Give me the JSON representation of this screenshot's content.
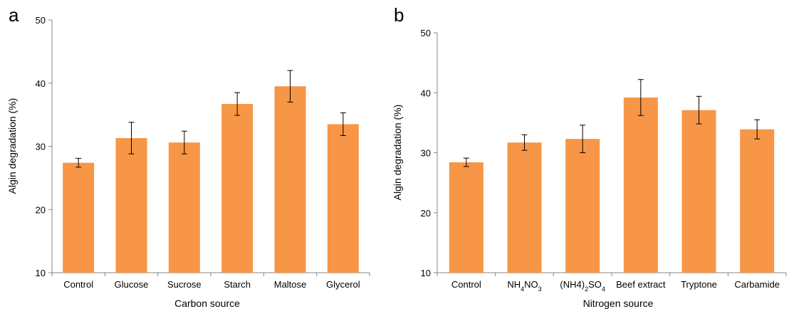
{
  "chart_data": [
    {
      "panel_label": "a",
      "type": "bar",
      "categories": [
        "Control",
        "Glucose",
        "Sucrose",
        "Starch",
        "Maltose",
        "Glycerol"
      ],
      "values": [
        27.4,
        31.3,
        30.6,
        36.7,
        39.5,
        33.5
      ],
      "errors": [
        0.7,
        2.5,
        1.8,
        1.8,
        2.5,
        1.8
      ],
      "xlabel": "Carbon source",
      "ylabel": "Algin degradation (%)",
      "ylim": [
        10,
        50
      ],
      "yticks": [
        "10",
        "20",
        "30",
        "40",
        "50"
      ],
      "bar_color": "#F79646",
      "grid": false
    },
    {
      "panel_label": "b",
      "type": "bar",
      "categories": [
        "Control",
        "NH4NO3",
        "(NH4)2SO4",
        "Beef extract",
        "Tryptone",
        "Carbamide"
      ],
      "category_labels": [
        [
          {
            "t": "Control",
            "s": ""
          }
        ],
        [
          {
            "t": "NH",
            "s": ""
          },
          {
            "t": "4",
            "s": "sub"
          },
          {
            "t": "NO",
            "s": ""
          },
          {
            "t": "3",
            "s": "sub"
          }
        ],
        [
          {
            "t": "(NH4)",
            "s": ""
          },
          {
            "t": "2",
            "s": "sub"
          },
          {
            "t": "SO",
            "s": ""
          },
          {
            "t": "4",
            "s": "sub"
          }
        ],
        [
          {
            "t": "Beef extract",
            "s": ""
          }
        ],
        [
          {
            "t": "Tryptone",
            "s": ""
          }
        ],
        [
          {
            "t": "Carbamide",
            "s": ""
          }
        ]
      ],
      "values": [
        28.4,
        31.7,
        32.3,
        39.2,
        37.1,
        33.9
      ],
      "errors": [
        0.7,
        1.3,
        2.3,
        3.0,
        2.3,
        1.6
      ],
      "xlabel": "Nitrogen source",
      "ylabel": "Algin degradation (%)",
      "ylim": [
        10,
        50
      ],
      "yticks": [
        "10",
        "20",
        "30",
        "40",
        "50"
      ],
      "bar_color": "#F79646",
      "grid": false
    }
  ]
}
